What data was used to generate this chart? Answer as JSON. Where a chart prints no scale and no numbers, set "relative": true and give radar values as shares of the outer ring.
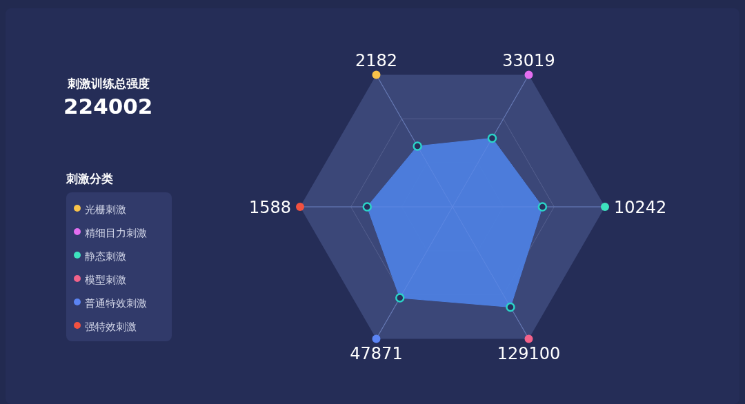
{
  "chart_data": [
    {
      "type": "other",
      "title": "刺激训练总强度",
      "annotations": [
        "224002"
      ]
    },
    {
      "type": "radar",
      "relative": true,
      "marker": "circle",
      "categories": [
        "2182",
        "33019",
        "10242",
        "129100",
        "47871",
        "1588"
      ],
      "colors": [
        "#f9c349",
        "#e36ef0",
        "#3de3bf",
        "#f2628a",
        "#5b84f4",
        "#f25140"
      ],
      "series": [
        {
          "color": "#4d7fe0",
          "values": [
            0.46,
            0.52,
            0.59,
            0.76,
            0.69,
            0.56
          ]
        }
      ]
    },
    {
      "type": "other",
      "title": "刺激分类",
      "categories": [
        "光栅刺激",
        "精细目力刺激",
        "静态刺激",
        "模型刺激",
        "普通特效刺激",
        "强特效刺激"
      ],
      "colors": [
        "#f9c349",
        "#e36ef0",
        "#3de3bf",
        "#f2628a",
        "#5b84f4",
        "#f25140"
      ]
    }
  ]
}
